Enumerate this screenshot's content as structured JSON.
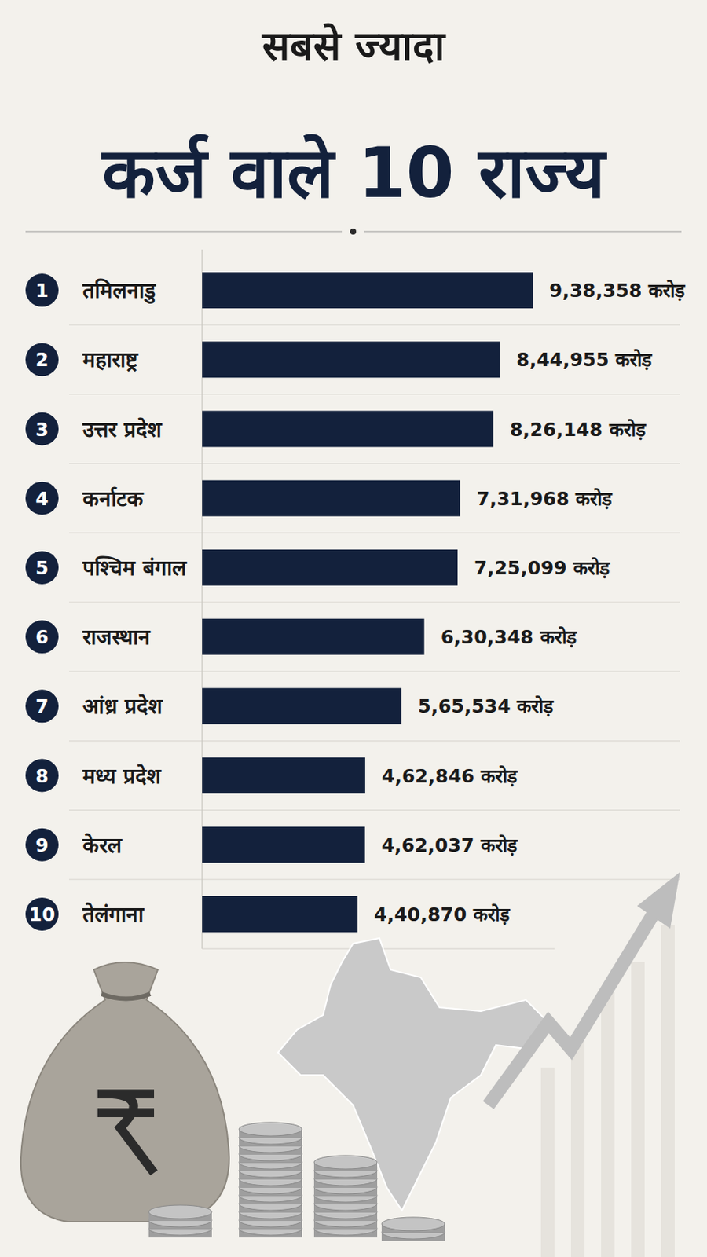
{
  "chart_data": {
    "type": "bar",
    "orientation": "horizontal",
    "title": "सबसे ज्यादा",
    "subtitle": "कर्ज वाले 10 राज्य",
    "ranks": [
      1,
      2,
      3,
      4,
      5,
      6,
      7,
      8,
      9,
      10
    ],
    "categories": [
      "तमिलनाडु",
      "महाराष्ट्र",
      "उत्तर प्रदेश",
      "कर्नाटक",
      "पश्चिम बंगाल",
      "राजस्थान",
      "आंध्र प्रदेश",
      "मध्य प्रदेश",
      "केरल",
      "तेलंगाना"
    ],
    "values": [
      938358,
      844955,
      826148,
      731968,
      725099,
      630348,
      565534,
      462846,
      462037,
      440870
    ],
    "value_labels": [
      "9,38,358 करोड़",
      "8,44,955 करोड़",
      "8,26,148 करोड़",
      "7,31,968 करोड़",
      "7,25,099 करोड़",
      "6,30,348 करोड़",
      "5,65,534 करोड़",
      "4,62,846 करोड़",
      "4,62,037 करोड़",
      "4,40,870 करोड़"
    ],
    "data_labels": true,
    "color": "#13213c",
    "xlim": [
      0,
      1000000
    ],
    "tick_labels": false,
    "grid": false
  }
}
